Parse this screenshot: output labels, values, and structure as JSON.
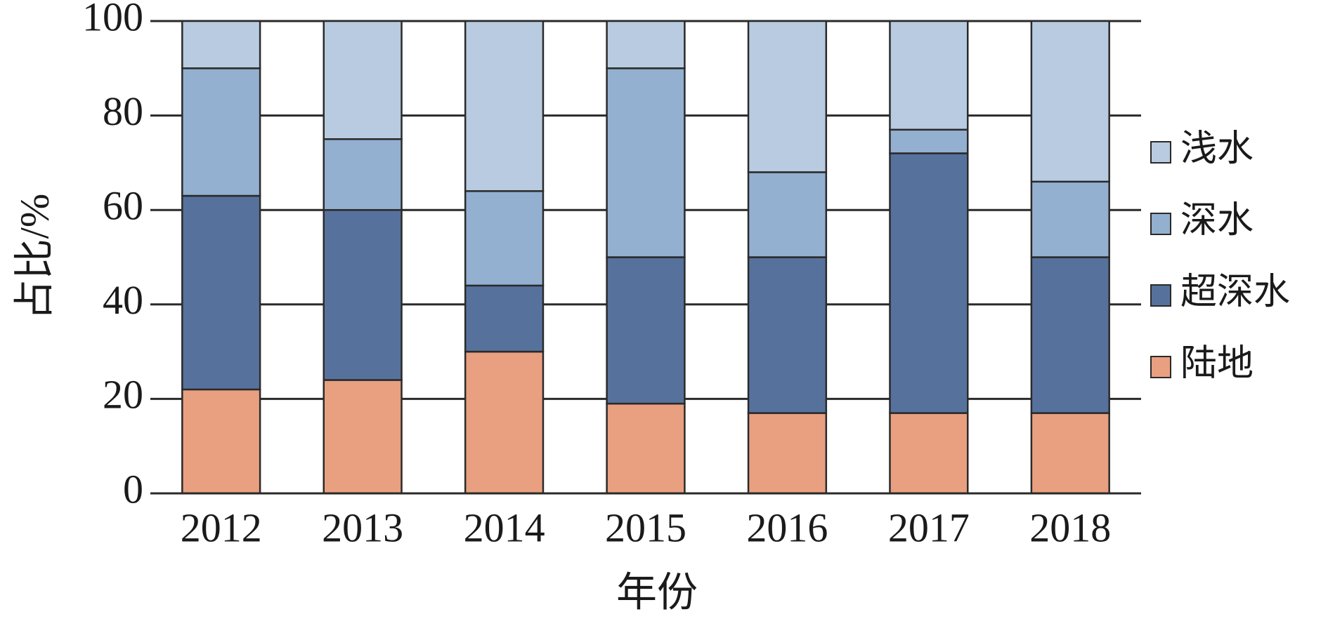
{
  "chart_data": {
    "type": "stacked_bar",
    "x_label": "年份",
    "y_label": "占比/%",
    "categories": [
      "2012",
      "2013",
      "2014",
      "2015",
      "2016",
      "2017",
      "2018"
    ],
    "series": [
      {
        "name": "陆地",
        "color": "#e9a080",
        "values": [
          22,
          24,
          30,
          19,
          17,
          17,
          17
        ]
      },
      {
        "name": "超深水",
        "color": "#56729c",
        "values": [
          41,
          36,
          14,
          31,
          33,
          55,
          33
        ]
      },
      {
        "name": "深水",
        "color": "#93b0d0",
        "values": [
          27,
          15,
          20,
          40,
          18,
          5,
          16
        ]
      },
      {
        "name": "浅水",
        "color": "#b8cbe0",
        "values": [
          10,
          25,
          36,
          10,
          32,
          23,
          34
        ]
      }
    ],
    "ylim": [
      0,
      100
    ],
    "yticks": [
      0,
      20,
      40,
      60,
      80,
      100
    ],
    "grid": true,
    "legend": "right"
  }
}
